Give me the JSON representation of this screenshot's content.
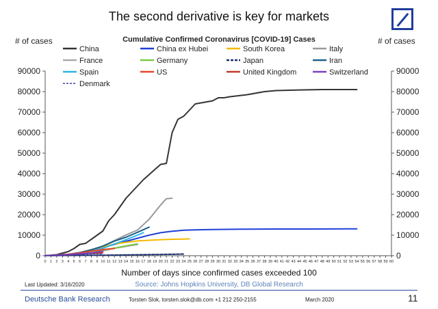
{
  "header": {
    "title": "The second derivative is key for markets"
  },
  "footer": {
    "last_updated": "Last Updated: 3/16/2020",
    "source": "Source: Johns Hopkins University, DB Global Research",
    "brand": "Deutsche Bank Research",
    "contact": "Torsten Slok, torsten.slok@db.com  +1 212 250-2155",
    "date": "March 2020",
    "page_number": "11"
  },
  "colors": {
    "logo": "#1f3c9b",
    "footer_rule": "#2a4a9a"
  },
  "chart_data": {
    "type": "line",
    "title": "Cumulative Confirmed Coronavirus [COVID-19] Cases",
    "ylabel_left": "# of cases",
    "ylabel_right": "# of cases",
    "xlabel": "Number of days since confirmed cases exceeded 100",
    "xlim": [
      0,
      60
    ],
    "ylim": [
      0,
      90000
    ],
    "x_ticks": [
      0,
      1,
      2,
      3,
      4,
      5,
      6,
      7,
      8,
      9,
      10,
      11,
      12,
      13,
      14,
      15,
      16,
      17,
      18,
      19,
      20,
      21,
      22,
      23,
      24,
      25,
      26,
      27,
      28,
      29,
      30,
      31,
      32,
      33,
      34,
      35,
      36,
      37,
      38,
      39,
      40,
      41,
      42,
      43,
      44,
      45,
      46,
      47,
      48,
      49,
      50,
      51,
      52,
      53,
      54,
      55,
      56,
      57,
      58,
      59,
      60
    ],
    "y_ticks": [
      0,
      10000,
      20000,
      30000,
      40000,
      50000,
      60000,
      70000,
      80000,
      90000
    ],
    "grid": false,
    "legend_position": "top",
    "series": [
      {
        "name": "China",
        "color": "#333333",
        "width": 2,
        "dash": "",
        "x": [
          0,
          2,
          4,
          5,
          6,
          7,
          8,
          10,
          11,
          12,
          14,
          15,
          17,
          19,
          20,
          21,
          22,
          23,
          24,
          26,
          28,
          29,
          30,
          31,
          32,
          35,
          38,
          40,
          44,
          48,
          52,
          54
        ],
        "y": [
          0,
          500,
          2000,
          3500,
          5500,
          6000,
          8000,
          12000,
          17000,
          20000,
          28000,
          31000,
          37000,
          42000,
          44500,
          45000,
          60000,
          66500,
          68000,
          74000,
          75000,
          75500,
          77000,
          77000,
          77500,
          78500,
          80000,
          80500,
          80800,
          81000,
          81000,
          81000
        ]
      },
      {
        "name": "China ex Hubei",
        "color": "#1f3fd8",
        "width": 2,
        "dash": "",
        "x": [
          0,
          2,
          4,
          6,
          8,
          10,
          12,
          14,
          16,
          18,
          20,
          22,
          24,
          26,
          28,
          30,
          34,
          40,
          46,
          54
        ],
        "y": [
          0,
          200,
          600,
          1500,
          2500,
          4000,
          5500,
          7000,
          8500,
          10000,
          11200,
          11900,
          12400,
          12600,
          12700,
          12800,
          12900,
          13000,
          13000,
          13100
        ]
      },
      {
        "name": "South Korea",
        "color": "#f5b800",
        "width": 2,
        "dash": "",
        "x": [
          0,
          4,
          6,
          8,
          10,
          12,
          14,
          16,
          18,
          20,
          22,
          24,
          25
        ],
        "y": [
          0,
          400,
          1500,
          3000,
          4300,
          5700,
          6500,
          7200,
          7500,
          7800,
          8000,
          8100,
          8200
        ]
      },
      {
        "name": "Italy",
        "color": "#999999",
        "width": 2,
        "dash": "",
        "x": [
          0,
          4,
          6,
          8,
          10,
          12,
          14,
          16,
          17,
          18,
          19,
          20,
          21,
          22
        ],
        "y": [
          0,
          500,
          1200,
          2500,
          4600,
          7400,
          10100,
          12500,
          15100,
          17700,
          21200,
          24700,
          27800,
          28000
        ]
      },
      {
        "name": "France",
        "color": "#aaaaaa",
        "width": 2,
        "dash": "",
        "x": [
          0,
          4,
          6,
          8,
          10,
          12,
          14,
          16
        ],
        "y": [
          0,
          300,
          700,
          1300,
          2300,
          3600,
          4500,
          5400
        ]
      },
      {
        "name": "Germany",
        "color": "#7ac943",
        "width": 2,
        "dash": "",
        "x": [
          0,
          4,
          6,
          8,
          10,
          12,
          14,
          16
        ],
        "y": [
          0,
          400,
          800,
          1500,
          2700,
          3700,
          4800,
          5800
        ]
      },
      {
        "name": "Japan",
        "color": "#1a2f6e",
        "width": 2,
        "dash": "4,2",
        "x": [
          0,
          4,
          8,
          12,
          16,
          20,
          24
        ],
        "y": [
          0,
          100,
          200,
          300,
          450,
          600,
          800
        ]
      },
      {
        "name": "Iran",
        "color": "#1a5f8e",
        "width": 2,
        "dash": "",
        "x": [
          0,
          4,
          6,
          8,
          10,
          12,
          14,
          16,
          18
        ],
        "y": [
          0,
          700,
          1500,
          2900,
          4700,
          7100,
          9000,
          11400,
          13900
        ]
      },
      {
        "name": "Spain",
        "color": "#29b6e6",
        "width": 2,
        "dash": "",
        "x": [
          0,
          4,
          6,
          8,
          10,
          12,
          14,
          16,
          17
        ],
        "y": [
          0,
          500,
          1100,
          2200,
          3600,
          5700,
          7800,
          10000,
          11200
        ]
      },
      {
        "name": "US",
        "color": "#e8452a",
        "width": 2,
        "dash": "",
        "x": [
          0,
          2,
          4,
          6,
          8,
          10,
          12
        ],
        "y": [
          0,
          300,
          700,
          1300,
          2200,
          3000,
          3500
        ]
      },
      {
        "name": "United Kingdom",
        "color": "#c0382b",
        "width": 2,
        "dash": "",
        "x": [
          0,
          2,
          4,
          6,
          8,
          10
        ],
        "y": [
          0,
          200,
          400,
          800,
          1200,
          1400
        ]
      },
      {
        "name": "Switzerland",
        "color": "#7a3fc0",
        "width": 2,
        "dash": "",
        "x": [
          0,
          2,
          4,
          6,
          8,
          10
        ],
        "y": [
          0,
          200,
          500,
          900,
          1300,
          2200
        ]
      },
      {
        "name": "Denmark",
        "color": "#3a3aa8",
        "width": 1,
        "dash": "3,2",
        "x": [
          0,
          2,
          4,
          6,
          8,
          10
        ],
        "y": [
          0,
          100,
          300,
          600,
          800,
          900
        ]
      }
    ]
  }
}
